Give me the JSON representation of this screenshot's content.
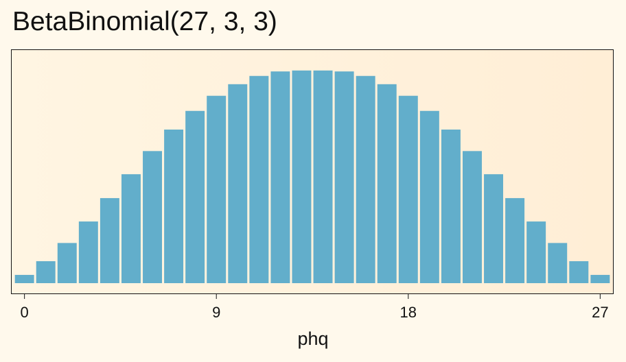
{
  "chart_data": {
    "type": "bar",
    "title": "BetaBinomial(27, 3, 3)",
    "xlabel": "phq",
    "ylabel": "",
    "categories": [
      0,
      1,
      2,
      3,
      4,
      5,
      6,
      7,
      8,
      9,
      10,
      11,
      12,
      13,
      14,
      15,
      16,
      17,
      18,
      19,
      20,
      21,
      22,
      23,
      24,
      25,
      26,
      27
    ],
    "values": [
      0.0035,
      0.0093,
      0.017,
      0.0261,
      0.036,
      0.0461,
      0.0559,
      0.065,
      0.0729,
      0.0793,
      0.0842,
      0.0877,
      0.0896,
      0.09,
      0.09,
      0.0896,
      0.0877,
      0.0842,
      0.0793,
      0.0729,
      0.065,
      0.0559,
      0.0461,
      0.036,
      0.0261,
      0.017,
      0.0093,
      0.0035
    ],
    "x_ticks": [
      "0",
      "9",
      "18",
      "27"
    ],
    "xlim": [
      -0.6,
      27.6
    ],
    "ylim": [
      0,
      0.0943
    ],
    "y_axis_shown": false,
    "grid": false,
    "colors": {
      "bar": "#62aecb",
      "panel_background": "#fff0d8",
      "page_background": "#fff9ec",
      "axis": "#111111"
    }
  }
}
